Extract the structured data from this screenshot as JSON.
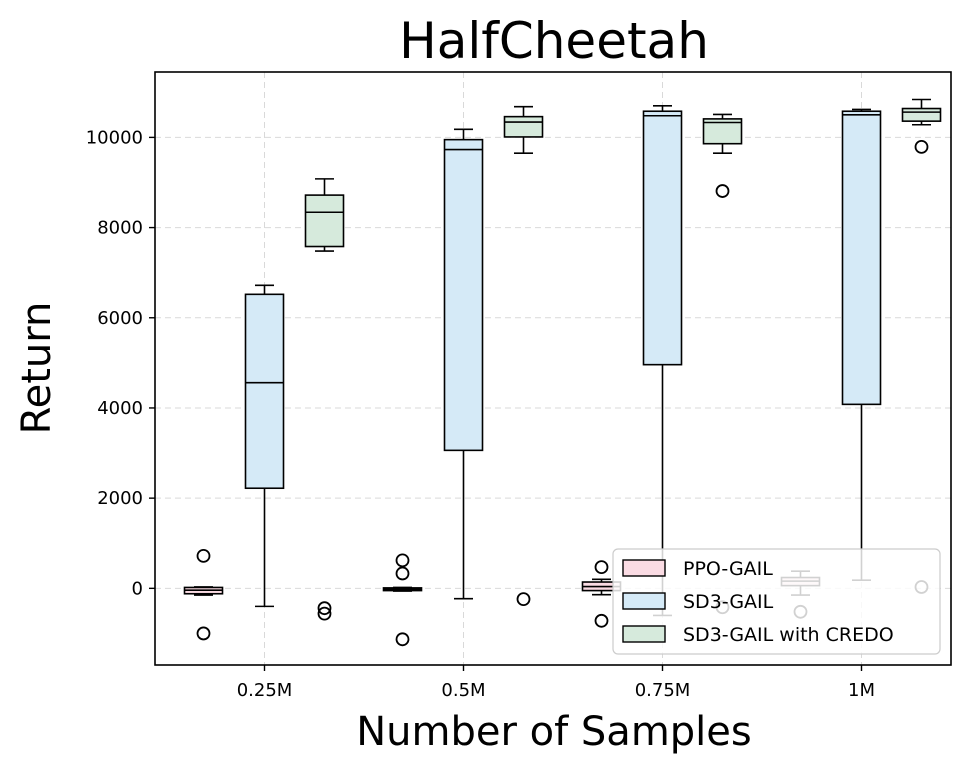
{
  "chart_data": {
    "type": "box",
    "title": "HalfCheetah",
    "xlabel": "Number of Samples",
    "ylabel": "Return",
    "categories": [
      "0.25M",
      "0.5M",
      "0.75M",
      "1M"
    ],
    "ylim": [
      -1700,
      11450
    ],
    "yticks": [
      0,
      2000,
      4000,
      6000,
      8000,
      10000
    ],
    "grid": true,
    "legend_position": "lower-right",
    "series": [
      {
        "name": "PPO-GAIL",
        "color": "#fadbe3",
        "boxes": [
          {
            "whislo": -150,
            "q1": -120,
            "med": -40,
            "q3": 20,
            "whishi": 30,
            "fliers": [
              720,
              -1000
            ]
          },
          {
            "whislo": -60,
            "q1": -50,
            "med": -20,
            "q3": 10,
            "whishi": 20,
            "fliers": [
              620,
              330,
              -1130
            ]
          },
          {
            "whislo": -140,
            "q1": -50,
            "med": 40,
            "q3": 140,
            "whishi": 200,
            "fliers": [
              470,
              -720
            ]
          },
          {
            "whislo": -150,
            "q1": 60,
            "med": 160,
            "q3": 240,
            "whishi": 380,
            "fliers": [
              -520
            ]
          }
        ]
      },
      {
        "name": "SD3-GAIL",
        "color": "#d5eaf7",
        "boxes": [
          {
            "whislo": -400,
            "q1": 2220,
            "med": 4560,
            "q3": 6520,
            "whishi": 6720,
            "fliers": []
          },
          {
            "whislo": -230,
            "q1": 3060,
            "med": 9730,
            "q3": 9950,
            "whishi": 10180,
            "fliers": []
          },
          {
            "whislo": -600,
            "q1": 4960,
            "med": 10480,
            "q3": 10580,
            "whishi": 10700,
            "fliers": []
          },
          {
            "whislo": 180,
            "q1": 4080,
            "med": 10500,
            "q3": 10580,
            "whishi": 10620,
            "fliers": []
          }
        ]
      },
      {
        "name": "SD3-GAIL with CREDO",
        "color": "#d6eadc",
        "boxes": [
          {
            "whislo": 7480,
            "q1": 7580,
            "med": 8340,
            "q3": 8720,
            "whishi": 9080,
            "fliers": [
              -440,
              -560
            ]
          },
          {
            "whislo": 9650,
            "q1": 10010,
            "med": 10340,
            "q3": 10460,
            "whishi": 10680,
            "fliers": [
              -240
            ]
          },
          {
            "whislo": 9650,
            "q1": 9860,
            "med": 10330,
            "q3": 10410,
            "whishi": 10510,
            "fliers": [
              8810,
              -420
            ]
          },
          {
            "whislo": 10280,
            "q1": 10360,
            "med": 10560,
            "q3": 10640,
            "whishi": 10840,
            "fliers": [
              9790,
              30
            ]
          }
        ]
      }
    ]
  }
}
